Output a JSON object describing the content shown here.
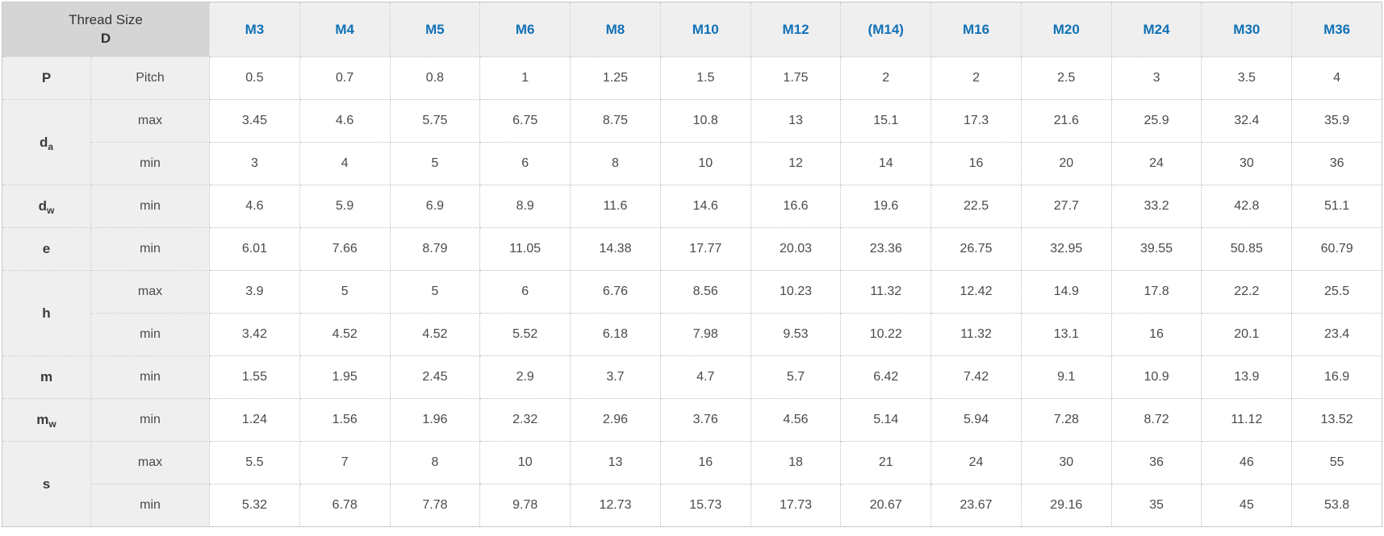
{
  "colors": {
    "accent_blue": "#1071b6",
    "corner_bg": "#d6d5d5",
    "header_bg": "#f0eff0",
    "text_dark": "#4a4a4a",
    "border_gray": "#bdbcbc"
  },
  "chart_data": {
    "type": "table",
    "corner": {
      "line1": "Thread Size",
      "line2": "D"
    },
    "columns": [
      "M3",
      "M4",
      "M5",
      "M6",
      "M8",
      "M10",
      "M12",
      "(M14)",
      "M16",
      "M20",
      "M24",
      "M30",
      "M36"
    ],
    "rows": [
      {
        "symbol": "P",
        "symbol_sub": "",
        "rowspan": 1,
        "limit": "Pitch",
        "values": [
          "0.5",
          "0.7",
          "0.8",
          "1",
          "1.25",
          "1.5",
          "1.75",
          "2",
          "2",
          "2.5",
          "3",
          "3.5",
          "4"
        ]
      },
      {
        "symbol": "d",
        "symbol_sub": "a",
        "rowspan": 2,
        "limit": "max",
        "values": [
          "3.45",
          "4.6",
          "5.75",
          "6.75",
          "8.75",
          "10.8",
          "13",
          "15.1",
          "17.3",
          "21.6",
          "25.9",
          "32.4",
          "35.9"
        ]
      },
      {
        "symbol": null,
        "symbol_sub": "",
        "rowspan": 0,
        "limit": "min",
        "values": [
          "3",
          "4",
          "5",
          "6",
          "8",
          "10",
          "12",
          "14",
          "16",
          "20",
          "24",
          "30",
          "36"
        ]
      },
      {
        "symbol": "d",
        "symbol_sub": "w",
        "rowspan": 1,
        "limit": "min",
        "values": [
          "4.6",
          "5.9",
          "6.9",
          "8.9",
          "11.6",
          "14.6",
          "16.6",
          "19.6",
          "22.5",
          "27.7",
          "33.2",
          "42.8",
          "51.1"
        ]
      },
      {
        "symbol": "e",
        "symbol_sub": "",
        "rowspan": 1,
        "limit": "min",
        "values": [
          "6.01",
          "7.66",
          "8.79",
          "11.05",
          "14.38",
          "17.77",
          "20.03",
          "23.36",
          "26.75",
          "32.95",
          "39.55",
          "50.85",
          "60.79"
        ]
      },
      {
        "symbol": "h",
        "symbol_sub": "",
        "rowspan": 2,
        "limit": "max",
        "values": [
          "3.9",
          "5",
          "5",
          "6",
          "6.76",
          "8.56",
          "10.23",
          "11.32",
          "12.42",
          "14.9",
          "17.8",
          "22.2",
          "25.5"
        ]
      },
      {
        "symbol": null,
        "symbol_sub": "",
        "rowspan": 0,
        "limit": "min",
        "values": [
          "3.42",
          "4.52",
          "4.52",
          "5.52",
          "6.18",
          "7.98",
          "9.53",
          "10.22",
          "11.32",
          "13.1",
          "16",
          "20.1",
          "23.4"
        ]
      },
      {
        "symbol": "m",
        "symbol_sub": "",
        "rowspan": 1,
        "limit": "min",
        "values": [
          "1.55",
          "1.95",
          "2.45",
          "2.9",
          "3.7",
          "4.7",
          "5.7",
          "6.42",
          "7.42",
          "9.1",
          "10.9",
          "13.9",
          "16.9"
        ]
      },
      {
        "symbol": "m",
        "symbol_sub": "w",
        "rowspan": 1,
        "limit": "min",
        "values": [
          "1.24",
          "1.56",
          "1.96",
          "2.32",
          "2.96",
          "3.76",
          "4.56",
          "5.14",
          "5.94",
          "7.28",
          "8.72",
          "11.12",
          "13.52"
        ]
      },
      {
        "symbol": "s",
        "symbol_sub": "",
        "rowspan": 2,
        "limit": "max",
        "values": [
          "5.5",
          "7",
          "8",
          "10",
          "13",
          "16",
          "18",
          "21",
          "24",
          "30",
          "36",
          "46",
          "55"
        ]
      },
      {
        "symbol": null,
        "symbol_sub": "",
        "rowspan": 0,
        "limit": "min",
        "values": [
          "5.32",
          "6.78",
          "7.78",
          "9.78",
          "12.73",
          "15.73",
          "17.73",
          "20.67",
          "23.67",
          "29.16",
          "35",
          "45",
          "53.8"
        ]
      }
    ]
  }
}
